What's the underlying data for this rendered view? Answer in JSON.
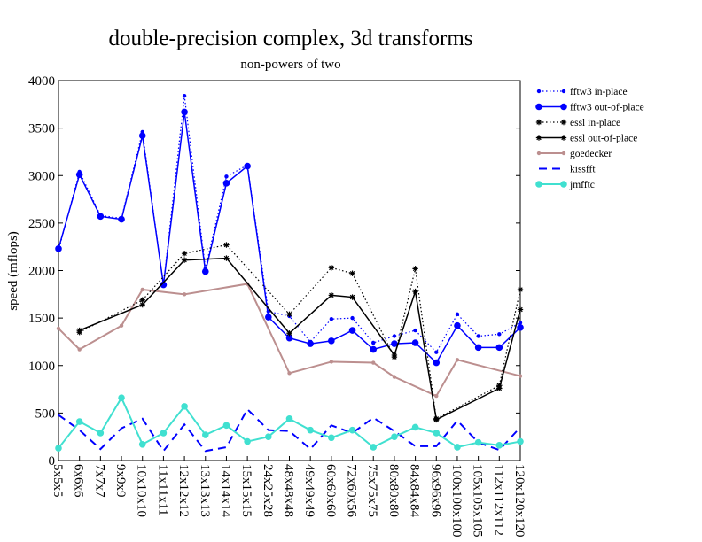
{
  "chart_data": {
    "type": "line",
    "title": "double-precision complex, 3d transforms",
    "subtitle": "non-powers of two",
    "xlabel": "",
    "ylabel": "speed (mflops)",
    "ylim": [
      0,
      4000
    ],
    "yticks": [
      0,
      500,
      1000,
      1500,
      2000,
      2500,
      3000,
      3500,
      4000
    ],
    "grid": false,
    "legend_position": "right",
    "categories": [
      "5x5x5",
      "6x6x6",
      "7x7x7",
      "9x9x9",
      "10x10x10",
      "11x11x11",
      "12x12x12",
      "13x13x13",
      "14x14x14",
      "15x15x15",
      "24x25x28",
      "48x48x48",
      "49x49x49",
      "60x60x60",
      "72x60x56",
      "75x75x75",
      "80x80x80",
      "84x84x84",
      "96x96x96",
      "100x100x100",
      "105x105x105",
      "112x112x112",
      "120x120x120"
    ],
    "series": [
      {
        "name": "fftw3 in-place",
        "color": "#0000ff",
        "line": "dotted",
        "marker": "small-dot",
        "values": [
          2210,
          3040,
          2580,
          2550,
          3460,
          1850,
          3840,
          2020,
          2990,
          3110,
          1570,
          1520,
          1250,
          1490,
          1500,
          1240,
          1310,
          1370,
          1140,
          1540,
          1310,
          1330,
          1450
        ]
      },
      {
        "name": "fftw3 out-of-place",
        "color": "#0000ff",
        "line": "solid",
        "marker": "dot",
        "values": [
          2230,
          3010,
          2570,
          2540,
          3420,
          1850,
          3670,
          1990,
          2920,
          3100,
          1510,
          1290,
          1230,
          1260,
          1370,
          1170,
          1230,
          1240,
          1030,
          1420,
          1190,
          1190,
          1400
        ]
      },
      {
        "name": "essl in-place",
        "color": "#000000",
        "line": "dotted",
        "marker": "star",
        "values": [
          null,
          1350,
          null,
          null,
          1690,
          null,
          2180,
          null,
          2270,
          null,
          null,
          1540,
          null,
          2030,
          1970,
          null,
          1090,
          2020,
          440,
          null,
          null,
          790,
          1800
        ]
      },
      {
        "name": "essl out-of-place",
        "color": "#000000",
        "line": "solid",
        "marker": "star",
        "values": [
          null,
          1370,
          null,
          null,
          1640,
          null,
          2110,
          null,
          2130,
          null,
          null,
          1340,
          null,
          1740,
          1720,
          null,
          1110,
          1780,
          430,
          null,
          null,
          760,
          1590
        ]
      },
      {
        "name": "goedecker",
        "color": "#bc8f8f",
        "line": "solid",
        "marker": "small-dot",
        "values": [
          1390,
          1170,
          null,
          1420,
          1800,
          null,
          1750,
          null,
          null,
          1860,
          null,
          920,
          null,
          1040,
          null,
          1030,
          880,
          null,
          680,
          1060,
          null,
          null,
          890
        ]
      },
      {
        "name": "kissfft",
        "color": "#0000ff",
        "line": "dashed",
        "marker": "none",
        "values": [
          480,
          320,
          120,
          340,
          440,
          100,
          380,
          100,
          140,
          540,
          320,
          310,
          120,
          370,
          290,
          450,
          310,
          150,
          150,
          420,
          190,
          110,
          350
        ]
      },
      {
        "name": "jmfftc",
        "color": "#40e0d0",
        "line": "solid",
        "marker": "dot",
        "values": [
          130,
          410,
          290,
          660,
          170,
          290,
          570,
          270,
          370,
          200,
          250,
          440,
          320,
          240,
          320,
          140,
          250,
          350,
          290,
          140,
          190,
          160,
          200
        ]
      }
    ]
  }
}
